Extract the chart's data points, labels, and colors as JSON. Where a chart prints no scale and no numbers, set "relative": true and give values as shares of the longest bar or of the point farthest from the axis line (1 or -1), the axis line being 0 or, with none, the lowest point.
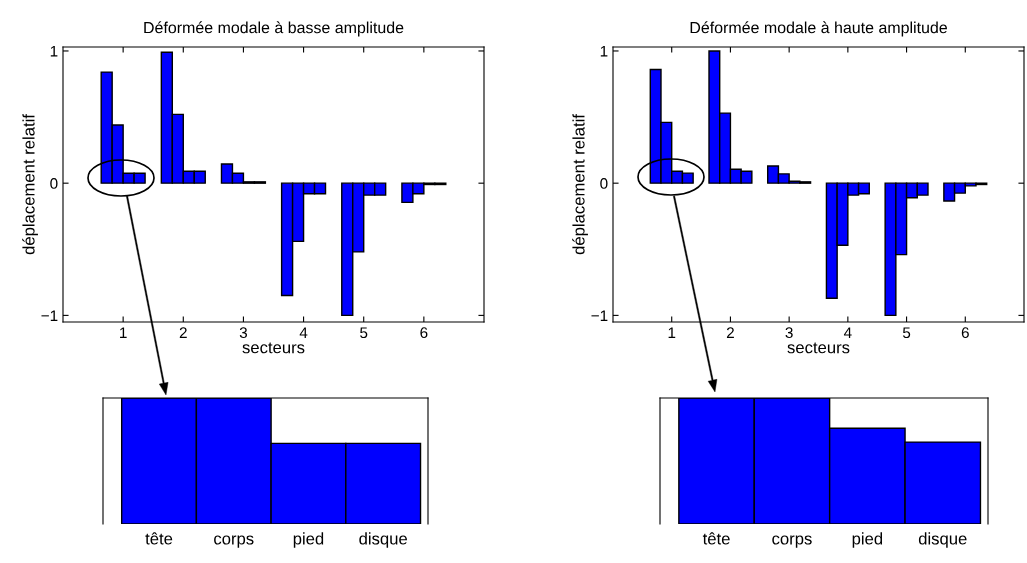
{
  "chart_data": [
    {
      "type": "bar",
      "title": "Déformée modale à basse amplitude",
      "xlabel": "secteurs",
      "ylabel": "déplacement relatif",
      "categories": [
        "1",
        "2",
        "3",
        "4",
        "5",
        "6"
      ],
      "ylim": [
        -1.05,
        1.03
      ],
      "yticks": [
        -1,
        0,
        1
      ],
      "grid": false,
      "legend": false,
      "series": [
        {
          "color": "#0000ff",
          "values": [
            0.84,
            0.99,
            0.145,
            -0.85,
            -1.0,
            -0.145
          ]
        },
        {
          "color": "#0000ff",
          "values": [
            0.44,
            0.52,
            0.075,
            -0.44,
            -0.52,
            -0.08
          ]
        },
        {
          "color": "#0000ff",
          "values": [
            0.075,
            0.09,
            0.01,
            -0.08,
            -0.09,
            -0.01
          ]
        },
        {
          "color": "#0000ff",
          "values": [
            0.075,
            0.09,
            0.01,
            -0.08,
            -0.09,
            -0.01
          ]
        }
      ]
    },
    {
      "type": "bar",
      "title": "Déformée modale à haute amplitude",
      "xlabel": "secteurs",
      "ylabel": "déplacement relatif",
      "categories": [
        "1",
        "2",
        "3",
        "4",
        "5",
        "6"
      ],
      "ylim": [
        -1.05,
        1.03
      ],
      "yticks": [
        -1,
        0,
        1
      ],
      "grid": false,
      "legend": false,
      "series": [
        {
          "color": "#0000ff",
          "values": [
            0.86,
            1.0,
            0.13,
            -0.87,
            -1.0,
            -0.135
          ]
        },
        {
          "color": "#0000ff",
          "values": [
            0.46,
            0.53,
            0.07,
            -0.47,
            -0.54,
            -0.075
          ]
        },
        {
          "color": "#0000ff",
          "values": [
            0.09,
            0.105,
            0.015,
            -0.09,
            -0.11,
            -0.02
          ]
        },
        {
          "color": "#0000ff",
          "values": [
            0.076,
            0.09,
            0.01,
            -0.08,
            -0.09,
            -0.01
          ]
        }
      ]
    },
    {
      "type": "bar",
      "categories": [
        "tête",
        "corps",
        "pied",
        "disque"
      ],
      "values": [
        1,
        1,
        0.64,
        0.64
      ],
      "color": "#0000ff",
      "relative": true,
      "tick_labels": "x",
      "grid": false,
      "legend": false
    },
    {
      "type": "bar",
      "categories": [
        "tête",
        "corps",
        "pied",
        "disque"
      ],
      "values": [
        1,
        1,
        0.76,
        0.65
      ],
      "color": "#0000ff",
      "relative": true,
      "tick_labels": "x",
      "grid": false,
      "legend": false
    }
  ]
}
